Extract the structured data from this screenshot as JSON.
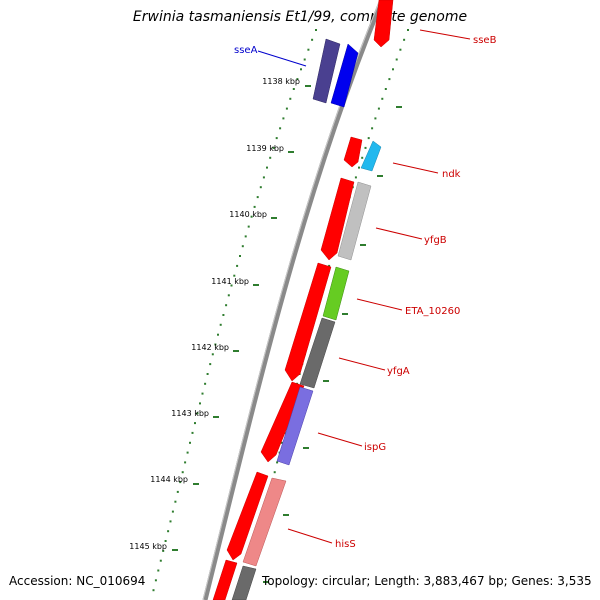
{
  "title": "Erwinia tasmaniensis Et1/99, complete genome",
  "accession": "Accession: NC_010694",
  "summary": "Topology: circular; Length: 3,883,467 bp; Genes: 3,535",
  "colors": {
    "backbone": "#8a8a8a",
    "tick": "#2f7d2f",
    "gene_label": "#cc0000",
    "highlight_label": "#0000cc"
  },
  "scale_labels": [
    "1138 kbp",
    "1139 kbp",
    "1140 kbp",
    "1141 kbp",
    "1142 kbp",
    "1143 kbp",
    "1144 kbp",
    "1145 kbp"
  ],
  "genes": [
    {
      "name": "sseB",
      "color": "#ff0000",
      "label_color": "#cc0000"
    },
    {
      "name": "sseA",
      "color": "#0000ee",
      "label_color": "#0000cc"
    },
    {
      "name": "ndk",
      "color": "#22b8ee",
      "label_color": "#cc0000"
    },
    {
      "name": "yfgB",
      "color": "#c0c0c0",
      "label_color": "#cc0000"
    },
    {
      "name": "ETA_10260",
      "color": "#66cc22",
      "label_color": "#cc0000"
    },
    {
      "name": "yfgA",
      "color": "#6a6a6a",
      "label_color": "#cc0000"
    },
    {
      "name": "ispG",
      "color": "#7a6ee0",
      "label_color": "#cc0000"
    },
    {
      "name": "hisS",
      "color": "#ee8888",
      "label_color": "#cc0000"
    }
  ]
}
